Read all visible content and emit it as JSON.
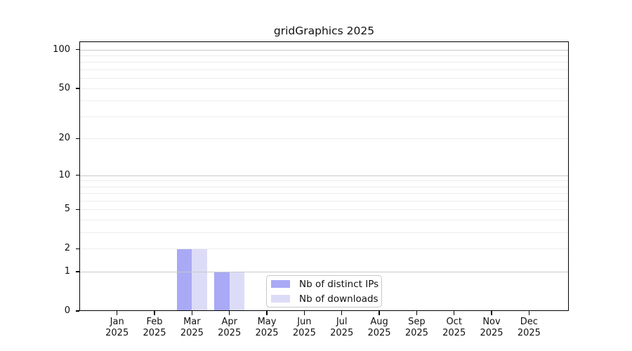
{
  "chart_data": {
    "type": "bar",
    "title": "gridGraphics 2025",
    "categories": [
      "Jan 2025",
      "Feb 2025",
      "Mar 2025",
      "Apr 2025",
      "May 2025",
      "Jun 2025",
      "Jul 2025",
      "Aug 2025",
      "Sep 2025",
      "Oct 2025",
      "Nov 2025",
      "Dec 2025"
    ],
    "x_axis": {
      "months": [
        "Jan",
        "Feb",
        "Mar",
        "Apr",
        "May",
        "Jun",
        "Jul",
        "Aug",
        "Sep",
        "Oct",
        "Nov",
        "Dec"
      ],
      "year": "2025"
    },
    "series": [
      {
        "name": "Nb of distinct IPs",
        "color": "#a9a9f6",
        "values": [
          0,
          0,
          2,
          1,
          0,
          0,
          0,
          0,
          0,
          0,
          0,
          0
        ]
      },
      {
        "name": "Nb of downloads",
        "color": "#dcdcf8",
        "values": [
          0,
          0,
          2,
          1,
          0,
          0,
          0,
          0,
          0,
          0,
          0,
          0
        ]
      }
    ],
    "y_axis": {
      "scale": "log10(1+x)",
      "tick_values": [
        0,
        1,
        2,
        5,
        10,
        20,
        50,
        100
      ],
      "tick_labels": [
        "0",
        "1",
        "2",
        "5",
        "10",
        "20",
        "50",
        "100"
      ],
      "ylim": [
        0,
        115
      ]
    },
    "grid": {
      "major_values": [
        1,
        10,
        100
      ],
      "minor_values": [
        2,
        3,
        4,
        5,
        6,
        7,
        8,
        9,
        20,
        30,
        40,
        50,
        60,
        70,
        80,
        90
      ],
      "major_color": "#c9c9c9",
      "minor_color": "#ececec"
    },
    "legend": {
      "position": "inside-bottom-center",
      "entries": [
        "Nb of distinct IPs",
        "Nb of downloads"
      ]
    },
    "colors": {
      "axis": "#000000",
      "text": "#111111",
      "background": "#ffffff"
    }
  }
}
